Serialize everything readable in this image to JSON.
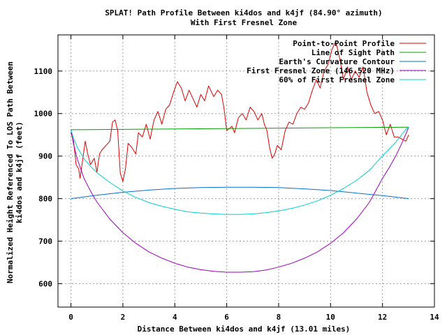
{
  "chart_data": {
    "type": "line",
    "title": "SPLAT! Path Profile Between ki4dos and k4jf (84.90° azimuth)",
    "subtitle": "With First Fresnel Zone",
    "xlabel": "Distance Between ki4dos and k4jf (13.01 miles)",
    "ylabel_line1": "Normalized Height Referenced To LOS Path Between",
    "ylabel_line2": "ki4dos and k4jf (feet)",
    "xlim": [
      -0.5,
      14
    ],
    "ylim": [
      545,
      1185
    ],
    "xticks": [
      0,
      2,
      4,
      6,
      8,
      10,
      12,
      14
    ],
    "yticks": [
      600,
      700,
      800,
      900,
      1000,
      1100
    ],
    "grid": true,
    "legend_position": "top-right",
    "series": [
      {
        "name": "Point-to-Point Profile",
        "color": "#e00000",
        "x": [
          0,
          0.1,
          0.2,
          0.3,
          0.35,
          0.45,
          0.55,
          0.65,
          0.75,
          0.9,
          1.0,
          1.1,
          1.2,
          1.35,
          1.5,
          1.6,
          1.7,
          1.8,
          1.9,
          2.0,
          2.1,
          2.2,
          2.35,
          2.5,
          2.6,
          2.75,
          2.9,
          3.05,
          3.2,
          3.35,
          3.5,
          3.65,
          3.8,
          3.95,
          4.1,
          4.25,
          4.4,
          4.55,
          4.7,
          4.85,
          5.0,
          5.15,
          5.3,
          5.5,
          5.65,
          5.8,
          5.9,
          6.0,
          6.1,
          6.2,
          6.3,
          6.45,
          6.6,
          6.75,
          6.9,
          7.05,
          7.2,
          7.35,
          7.45,
          7.55,
          7.65,
          7.75,
          7.85,
          7.95,
          8.1,
          8.25,
          8.4,
          8.55,
          8.7,
          8.85,
          9.0,
          9.15,
          9.3,
          9.45,
          9.6,
          9.75,
          9.9,
          10.05,
          10.2,
          10.35,
          10.5,
          10.65,
          10.8,
          10.95,
          11.1,
          11.25,
          11.4,
          11.55,
          11.7,
          11.85,
          12.0,
          12.15,
          12.3,
          12.45,
          12.6,
          12.75,
          12.9,
          13.01
        ],
        "y": [
          955,
          935,
          880,
          870,
          848,
          890,
          935,
          905,
          880,
          895,
          862,
          905,
          915,
          925,
          935,
          980,
          985,
          960,
          860,
          840,
          870,
          930,
          920,
          905,
          955,
          945,
          975,
          940,
          985,
          1005,
          975,
          1010,
          1020,
          1050,
          1075,
          1060,
          1030,
          1055,
          1035,
          1015,
          1045,
          1030,
          1065,
          1040,
          1055,
          1045,
          1010,
          960,
          965,
          970,
          955,
          990,
          1000,
          985,
          1015,
          1005,
          985,
          1000,
          975,
          960,
          920,
          895,
          905,
          925,
          915,
          960,
          980,
          975,
          1000,
          1015,
          1010,
          1025,
          1055,
          1080,
          1060,
          1100,
          1115,
          1150,
          1170,
          1130,
          1080,
          1110,
          1080,
          1100,
          1085,
          1110,
          1050,
          1020,
          1000,
          1005,
          985,
          950,
          975,
          945,
          945,
          940,
          935,
          950
        ]
      },
      {
        "name": "Line of Sight Path",
        "color": "#00a000",
        "x": [
          0,
          13.01
        ],
        "y": [
          962,
          968
        ]
      },
      {
        "name": "Earth's Curvature Contour",
        "color": "#0070d0",
        "x": [
          0,
          1,
          2,
          3,
          4,
          5,
          6,
          6.5,
          7,
          8,
          9,
          10,
          11,
          12,
          13.01
        ],
        "y": [
          800,
          808,
          815,
          820,
          824,
          826,
          827,
          827,
          827,
          826,
          823,
          819,
          813,
          807,
          800
        ]
      },
      {
        "name": "First Fresnel Zone (146.520 MHz)",
        "color": "#a000c0",
        "x": [
          0,
          0.1,
          0.25,
          0.5,
          0.75,
          1,
          1.5,
          2,
          2.5,
          3,
          3.5,
          4,
          4.5,
          5,
          5.5,
          6,
          6.5,
          7,
          7.5,
          8,
          8.5,
          9,
          9.5,
          10,
          10.5,
          11,
          11.5,
          12,
          12.25,
          12.5,
          12.75,
          12.9,
          13.01
        ],
        "y": [
          962,
          928,
          892,
          848,
          818,
          792,
          752,
          720,
          695,
          675,
          660,
          648,
          639,
          633,
          629,
          627,
          627,
          628,
          632,
          639,
          648,
          660,
          675,
          695,
          720,
          752,
          792,
          848,
          872,
          899,
          931,
          952,
          968
        ]
      },
      {
        "name": "60% of First Fresnel Zone",
        "color": "#00d0d0",
        "x": [
          0,
          0.1,
          0.25,
          0.5,
          0.75,
          1,
          1.5,
          2,
          2.5,
          3,
          3.5,
          4,
          4.5,
          5,
          5.5,
          6,
          6.5,
          7,
          7.5,
          8,
          8.5,
          9,
          9.5,
          10,
          10.5,
          11,
          11.5,
          12,
          12.25,
          12.5,
          12.75,
          12.9,
          13.01
        ],
        "y": [
          962,
          942,
          920,
          894,
          876,
          861,
          838,
          818,
          803,
          791,
          782,
          775,
          769,
          766,
          764,
          763,
          763,
          764,
          767,
          771,
          777,
          785,
          795,
          808,
          824,
          843,
          867,
          901,
          916,
          932,
          951,
          963,
          968
        ]
      }
    ]
  }
}
